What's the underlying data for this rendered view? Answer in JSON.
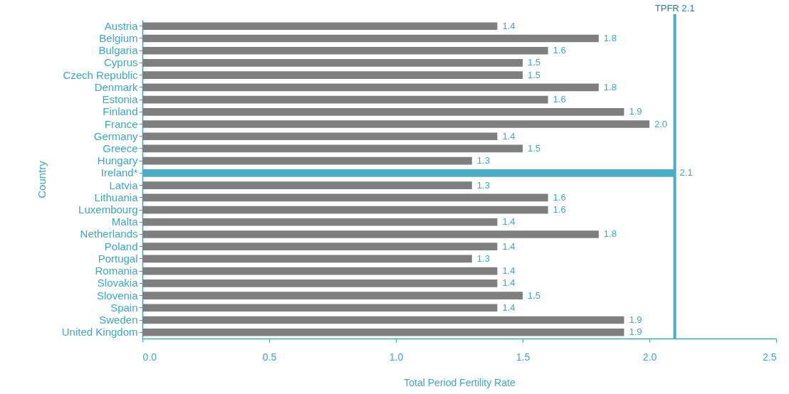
{
  "chart_data": {
    "type": "bar",
    "orientation": "horizontal",
    "xlabel": "Total Period Fertility Rate",
    "ylabel": "Country",
    "categories": [
      "Austria",
      "Belgium",
      "Bulgaria",
      "Cyprus",
      "Czech Republic",
      "Denmark",
      "Estonia",
      "Finland",
      "France",
      "Germany",
      "Greece",
      "Hungary",
      "Ireland*",
      "Latvia",
      "Lithuania",
      "Luxembourg",
      "Malta",
      "Netherlands",
      "Poland",
      "Portugal",
      "Romania",
      "Slovakia",
      "Slovenia",
      "Spain",
      "Sweden",
      "United Kingdom"
    ],
    "values": [
      1.4,
      1.8,
      1.6,
      1.5,
      1.5,
      1.8,
      1.6,
      1.9,
      2.0,
      1.4,
      1.5,
      1.3,
      2.1,
      1.3,
      1.6,
      1.6,
      1.4,
      1.8,
      1.4,
      1.3,
      1.4,
      1.4,
      1.5,
      1.4,
      1.9,
      1.9
    ],
    "colors": [
      "#7f7f7f",
      "#7f7f7f",
      "#7f7f7f",
      "#7f7f7f",
      "#7f7f7f",
      "#7f7f7f",
      "#7f7f7f",
      "#7f7f7f",
      "#7f7f7f",
      "#7f7f7f",
      "#7f7f7f",
      "#7f7f7f",
      "#4bacc6",
      "#7f7f7f",
      "#7f7f7f",
      "#7f7f7f",
      "#7f7f7f",
      "#7f7f7f",
      "#7f7f7f",
      "#7f7f7f",
      "#7f7f7f",
      "#7f7f7f",
      "#7f7f7f",
      "#7f7f7f",
      "#7f7f7f",
      "#7f7f7f"
    ],
    "xlim": [
      0,
      2.5
    ],
    "xticks": [
      {
        "value": 0,
        "label": "0.0"
      },
      {
        "value": 0.5,
        "label": "0.5"
      },
      {
        "value": 1,
        "label": "1.0"
      },
      {
        "value": 1.5,
        "label": "1.5"
      },
      {
        "value": 2,
        "label": "2.0"
      },
      {
        "value": 2.5,
        "label": "2.5"
      }
    ],
    "ref_lines": [
      {
        "axis": "x",
        "value": 2.1,
        "label": "TPFR 2.1",
        "color": "#4bacc6"
      }
    ],
    "value_labels": [
      "1.4",
      "1.8",
      "1.6",
      "1.5",
      "1.5",
      "1.8",
      "1.6",
      "1.9",
      "2.0",
      "1.4",
      "1.5",
      "1.3",
      "2.1",
      "1.3",
      "1.6",
      "1.6",
      "1.4",
      "1.8",
      "1.4",
      "1.3",
      "1.4",
      "1.4",
      "1.5",
      "1.4",
      "1.9",
      "1.9"
    ],
    "grid": false
  }
}
